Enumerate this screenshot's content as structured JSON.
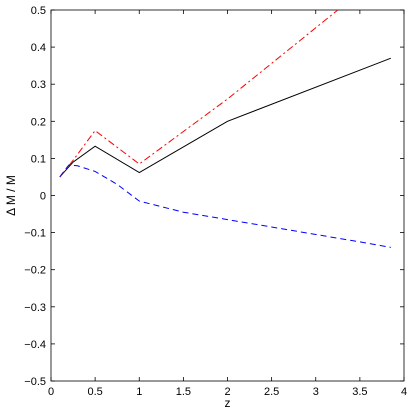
{
  "chart_data": {
    "type": "line",
    "title": "",
    "xlabel": "z",
    "ylabel": "Δ M / M",
    "xlim": [
      0,
      4
    ],
    "ylim": [
      -0.5,
      0.5
    ],
    "xticks": [
      0,
      0.5,
      1,
      1.5,
      2,
      2.5,
      3,
      3.5,
      4
    ],
    "xtick_labels": [
      "0",
      "0.5",
      "1",
      "1.5",
      "2",
      "2.5",
      "3",
      "3.5",
      "4"
    ],
    "yticks": [
      -0.5,
      -0.4,
      -0.3,
      -0.2,
      -0.1,
      0,
      0.1,
      0.2,
      0.3,
      0.4,
      0.5
    ],
    "ytick_labels": [
      "−0.5",
      "−0.4",
      "−0.3",
      "−0.2",
      "−0.1",
      "0",
      "0.1",
      "0.2",
      "0.3",
      "0.4",
      "0.5"
    ],
    "grid": false,
    "legend": false,
    "series": [
      {
        "style": "solid",
        "color": "#000000",
        "x": [
          0.1,
          0.25,
          0.5,
          1.0,
          2.0,
          3.85
        ],
        "y": [
          0.05,
          0.09,
          0.133,
          0.062,
          0.2,
          0.37
        ]
      },
      {
        "style": "dashdot",
        "color": "#ff0000",
        "x": [
          0.1,
          0.25,
          0.5,
          1.0,
          2.0,
          3.25
        ],
        "y": [
          0.05,
          0.095,
          0.175,
          0.085,
          0.26,
          0.5
        ]
      },
      {
        "style": "dashed",
        "color": "#0000ff",
        "x": [
          0.1,
          0.2,
          0.3,
          0.5,
          0.75,
          1.0,
          1.5,
          2.0,
          2.5,
          3.0,
          3.5,
          3.85
        ],
        "y": [
          0.05,
          0.082,
          0.08,
          0.065,
          0.03,
          -0.015,
          -0.045,
          -0.065,
          -0.085,
          -0.105,
          -0.125,
          -0.14
        ]
      }
    ]
  }
}
